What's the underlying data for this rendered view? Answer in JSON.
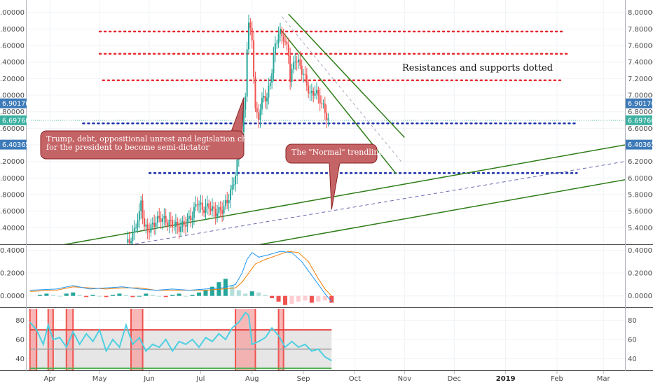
{
  "chart_data": [
    {
      "type": "candlestick",
      "price_ticks": [
        "8.00000",
        "7.80000",
        "7.60000",
        "7.40000",
        "7.20000",
        "7.00000",
        "6.80000",
        "6.60000",
        "6.40000",
        "6.20000",
        "6.00000",
        "5.80000",
        "5.60000",
        "5.40000"
      ],
      "price_tick_values": [
        8.0,
        7.8,
        7.6,
        7.4,
        7.2,
        7.0,
        6.8,
        6.6,
        6.4,
        6.2,
        6.0,
        5.8,
        5.6,
        5.4
      ],
      "ylim": [
        5.2,
        8.15
      ],
      "badges": [
        {
          "label": "6.90176",
          "value": 6.90176,
          "color": "#3d7ab8"
        },
        {
          "label": "6.69760",
          "value": 6.6976,
          "color": "#3bb0a0"
        },
        {
          "label": "6.40365",
          "value": 6.40365,
          "color": "#3d7ab8"
        }
      ],
      "months": [
        "Apr",
        "May",
        "Jun",
        "Jul",
        "Aug",
        "Sep",
        "Oct",
        "Nov",
        "Dec",
        "2019",
        "Feb",
        "Mar"
      ],
      "month_days": [
        6,
        36,
        66,
        97,
        128,
        159,
        190,
        220,
        250,
        281,
        312,
        340
      ],
      "bold_month": "2019",
      "xlim": [
        -8,
        353
      ],
      "price_path": [
        [
          53,
          5.22
        ],
        [
          56,
          5.3
        ],
        [
          58,
          5.45
        ],
        [
          60,
          5.55
        ],
        [
          61,
          5.73
        ],
        [
          63,
          5.4
        ],
        [
          66,
          5.38
        ],
        [
          70,
          5.48
        ],
        [
          73,
          5.52
        ],
        [
          76,
          5.48
        ],
        [
          80,
          5.45
        ],
        [
          84,
          5.4
        ],
        [
          88,
          5.46
        ],
        [
          92,
          5.55
        ],
        [
          95,
          5.72
        ],
        [
          98,
          5.62
        ],
        [
          102,
          5.66
        ],
        [
          106,
          5.58
        ],
        [
          110,
          5.62
        ],
        [
          113,
          5.72
        ],
        [
          116,
          5.88
        ],
        [
          118,
          6.05
        ],
        [
          120,
          6.3
        ],
        [
          122,
          6.55
        ],
        [
          124,
          7.0
        ],
        [
          125,
          7.6
        ],
        [
          126,
          7.85
        ],
        [
          128,
          7.7
        ],
        [
          130,
          6.8
        ],
        [
          132,
          6.75
        ],
        [
          135,
          7.0
        ],
        [
          137,
          6.95
        ],
        [
          140,
          7.3
        ],
        [
          142,
          7.6
        ],
        [
          144,
          7.75
        ],
        [
          147,
          7.7
        ],
        [
          150,
          7.5
        ],
        [
          151,
          7.2
        ],
        [
          154,
          7.45
        ],
        [
          157,
          7.35
        ],
        [
          160,
          7.2
        ],
        [
          163,
          7.0
        ],
        [
          166,
          7.05
        ],
        [
          169,
          6.95
        ],
        [
          172,
          6.8
        ],
        [
          174,
          6.7
        ]
      ],
      "trendline_main": [
        [
          10,
          5.18
        ],
        [
          353,
          6.4
        ]
      ],
      "trendline_dashed": [
        [
          50,
          5.18
        ],
        [
          353,
          6.2
        ]
      ],
      "trendline_low": [
        [
          128,
          5.18
        ],
        [
          353,
          5.98
        ]
      ],
      "channel_upper": [
        [
          150,
          7.98
        ],
        [
          220,
          6.49
        ]
      ],
      "channel_lower": [
        [
          145,
          7.8
        ],
        [
          215,
          6.05
        ]
      ],
      "channel_dashed": [
        [
          146,
          7.95
        ],
        [
          218,
          6.2
        ]
      ],
      "resistances": [
        {
          "from": 36,
          "to": 317,
          "value": 7.77
        },
        {
          "from": 36,
          "to": 319,
          "value": 7.5
        },
        {
          "from": 38,
          "to": 316,
          "value": 7.18
        }
      ],
      "supports": [
        {
          "from": 26,
          "to": 323,
          "value": 6.66
        },
        {
          "from": 66,
          "to": 324,
          "value": 6.06
        }
      ],
      "annotations": [
        {
          "text_lines": [
            "Trump, debt, oppositional unrest and legislation changes",
            "for the president to become semi-dictator"
          ],
          "pointer_to": [
            123,
            6.97
          ]
        },
        {
          "text_lines": [
            "The \"Normal\" trendline"
          ],
          "pointer_to": [
            176,
            5.62
          ]
        }
      ],
      "plain_text": "Resistances and supports dotted"
    },
    {
      "type": "line",
      "indicator": "MACD",
      "ticks": [
        "0.4000",
        "0.2000",
        "0.0000"
      ],
      "tick_values": [
        0.4,
        0.2,
        0.0
      ],
      "ylim": [
        -0.1,
        0.44
      ],
      "macd_line": [
        [
          -6,
          0.05
        ],
        [
          10,
          0.06
        ],
        [
          20,
          0.09
        ],
        [
          30,
          0.06
        ],
        [
          40,
          0.07
        ],
        [
          50,
          0.08
        ],
        [
          60,
          0.06
        ],
        [
          70,
          0.05
        ],
        [
          80,
          0.06
        ],
        [
          90,
          0.05
        ],
        [
          100,
          0.06
        ],
        [
          110,
          0.07
        ],
        [
          118,
          0.1
        ],
        [
          122,
          0.2
        ],
        [
          125,
          0.32
        ],
        [
          128,
          0.38
        ],
        [
          132,
          0.34
        ],
        [
          138,
          0.36
        ],
        [
          145,
          0.39
        ],
        [
          152,
          0.38
        ],
        [
          158,
          0.3
        ],
        [
          163,
          0.2
        ],
        [
          168,
          0.1
        ],
        [
          172,
          0.02
        ],
        [
          176,
          -0.05
        ]
      ],
      "signal_line": [
        [
          -6,
          0.04
        ],
        [
          10,
          0.05
        ],
        [
          20,
          0.08
        ],
        [
          30,
          0.07
        ],
        [
          40,
          0.06
        ],
        [
          50,
          0.07
        ],
        [
          60,
          0.07
        ],
        [
          70,
          0.05
        ],
        [
          80,
          0.05
        ],
        [
          90,
          0.05
        ],
        [
          100,
          0.05
        ],
        [
          110,
          0.06
        ],
        [
          118,
          0.07
        ],
        [
          122,
          0.12
        ],
        [
          126,
          0.2
        ],
        [
          130,
          0.28
        ],
        [
          136,
          0.32
        ],
        [
          142,
          0.35
        ],
        [
          150,
          0.39
        ],
        [
          156,
          0.38
        ],
        [
          162,
          0.3
        ],
        [
          168,
          0.15
        ],
        [
          172,
          0.06
        ],
        [
          176,
          0.0
        ]
      ],
      "histogram": [
        0.01,
        0.02,
        0.01,
        0.0,
        0.02,
        0.03,
        0.01,
        -0.01,
        0.01,
        0.0,
        -0.01,
        0.01,
        0.02,
        0.01,
        -0.01,
        0.0,
        0.02,
        0.01,
        0.0,
        -0.01,
        0.01,
        0.02,
        0.0,
        0.01,
        0.03,
        0.05,
        0.08,
        0.12,
        0.15,
        0.09,
        0.05,
        0.02,
        0.04,
        0.03,
        0.01,
        -0.02,
        -0.05,
        -0.08,
        -0.07,
        -0.05,
        -0.04,
        -0.06,
        -0.05,
        -0.04,
        -0.06
      ],
      "hist_start_day": 0,
      "hist_step": 4
    },
    {
      "type": "line",
      "indicator": "RSI",
      "ticks": [
        "80",
        "60",
        "40"
      ],
      "tick_values": [
        80,
        60,
        40
      ],
      "ylim": [
        28,
        92
      ],
      "upper_band": 70,
      "mid_band": 50,
      "lower_band": 30,
      "rsi_line": [
        [
          -6,
          78
        ],
        [
          -2,
          70
        ],
        [
          2,
          55
        ],
        [
          5,
          75
        ],
        [
          8,
          60
        ],
        [
          12,
          62
        ],
        [
          16,
          52
        ],
        [
          20,
          68
        ],
        [
          24,
          55
        ],
        [
          28,
          66
        ],
        [
          32,
          58
        ],
        [
          36,
          70
        ],
        [
          40,
          48
        ],
        [
          44,
          60
        ],
        [
          48,
          52
        ],
        [
          52,
          75
        ],
        [
          56,
          55
        ],
        [
          60,
          62
        ],
        [
          64,
          48
        ],
        [
          68,
          55
        ],
        [
          72,
          52
        ],
        [
          76,
          60
        ],
        [
          80,
          48
        ],
        [
          84,
          58
        ],
        [
          88,
          55
        ],
        [
          92,
          60
        ],
        [
          96,
          52
        ],
        [
          100,
          62
        ],
        [
          104,
          58
        ],
        [
          108,
          66
        ],
        [
          112,
          60
        ],
        [
          116,
          72
        ],
        [
          120,
          78
        ],
        [
          124,
          88
        ],
        [
          126,
          85
        ],
        [
          128,
          55
        ],
        [
          132,
          58
        ],
        [
          136,
          62
        ],
        [
          140,
          72
        ],
        [
          144,
          64
        ],
        [
          148,
          52
        ],
        [
          152,
          58
        ],
        [
          156,
          52
        ],
        [
          160,
          55
        ],
        [
          164,
          48
        ],
        [
          168,
          50
        ],
        [
          172,
          42
        ],
        [
          176,
          38
        ]
      ],
      "highlight_ranges": [
        [
          -6,
          -2
        ],
        [
          5,
          8
        ],
        [
          16,
          20
        ],
        [
          55,
          62
        ],
        [
          118,
          130
        ],
        [
          144,
          147
        ]
      ]
    }
  ]
}
